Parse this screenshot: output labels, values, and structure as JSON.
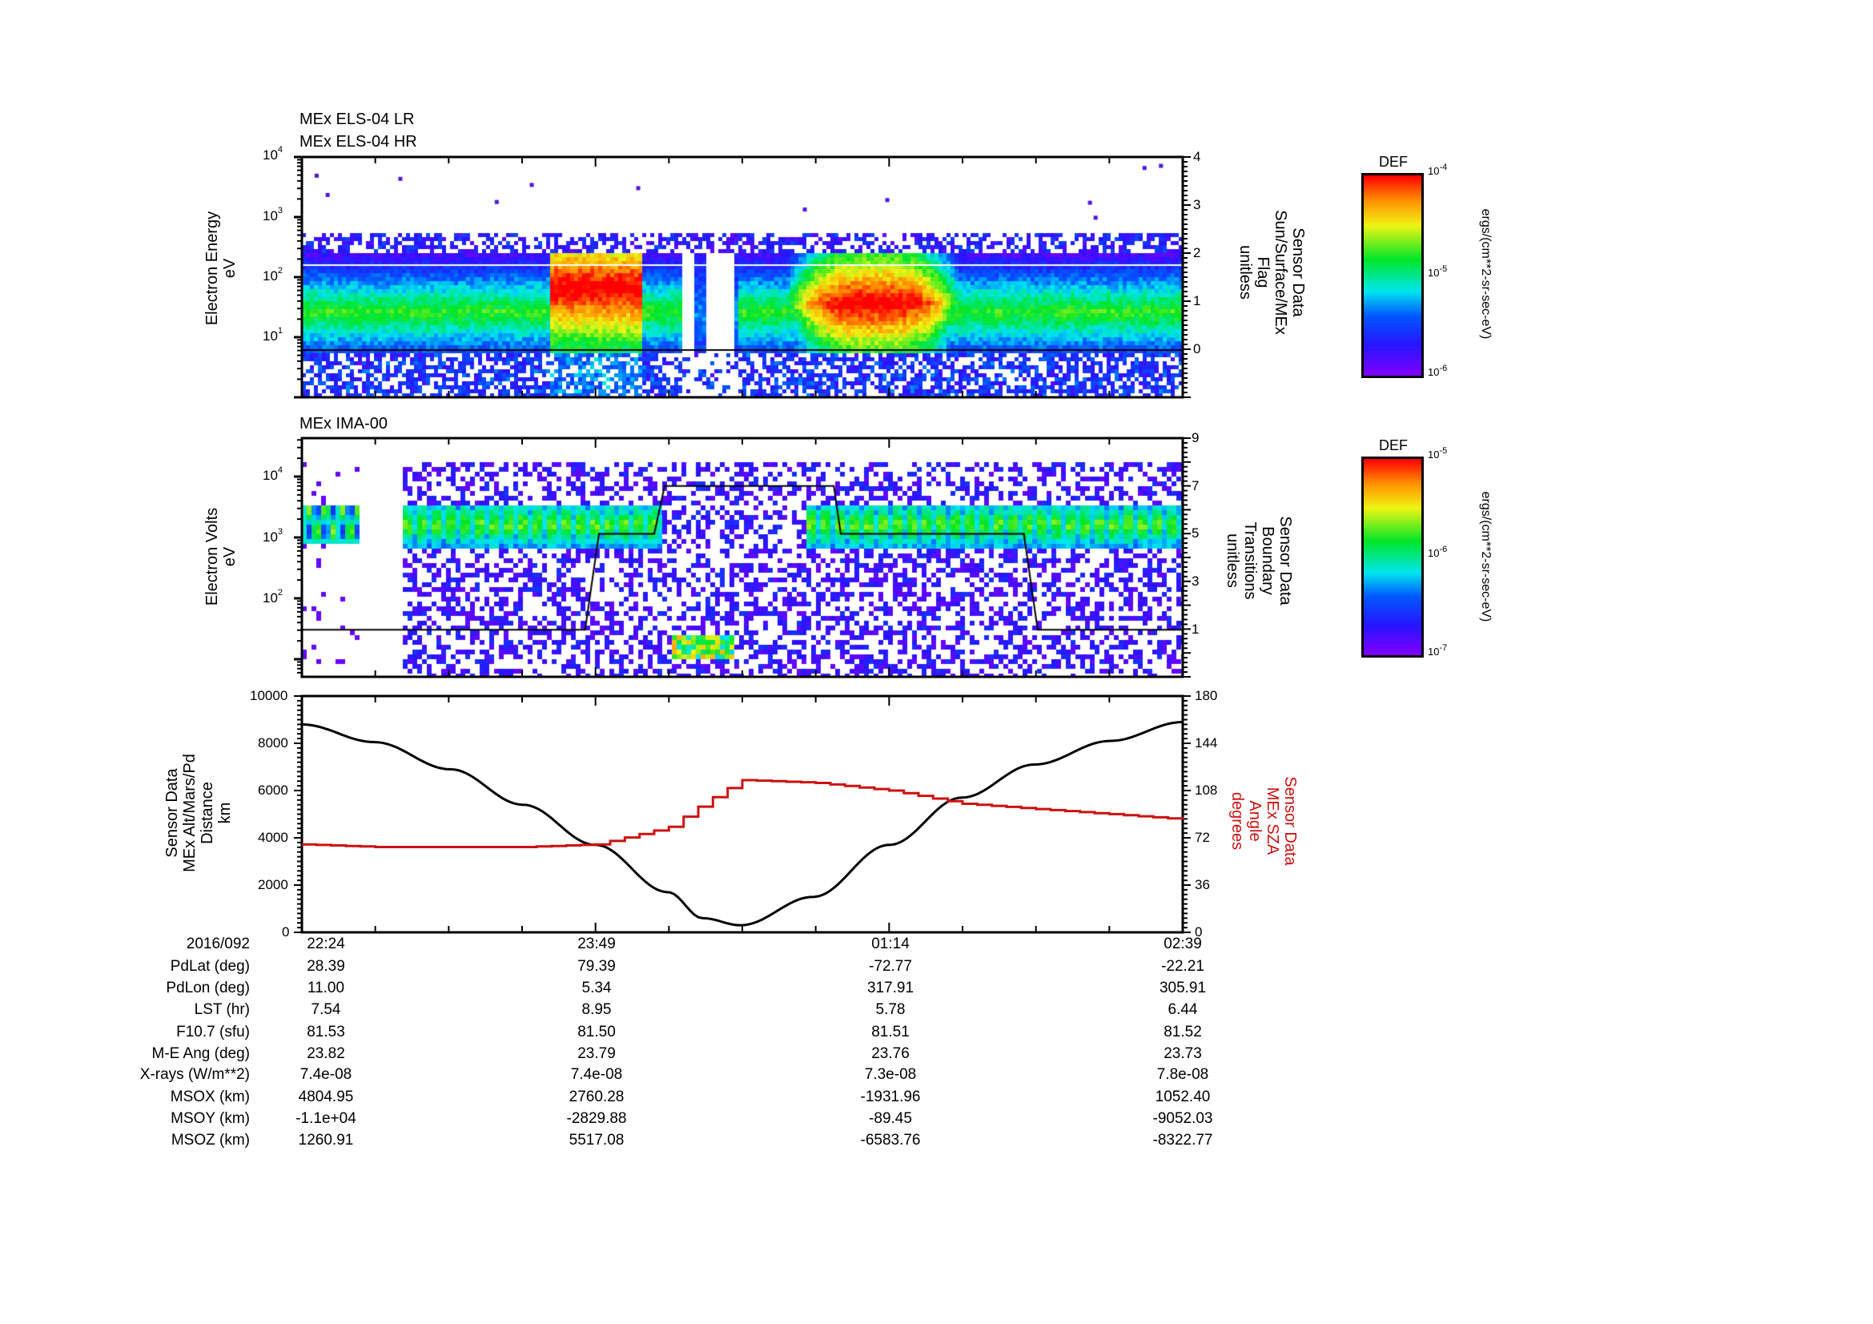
{
  "chart_data": [
    {
      "type": "heatmap",
      "panel": "ELS electron spectrogram",
      "titles": [
        "MEx ELS-04 LR",
        "MEx ELS-04 HR"
      ],
      "ylabel": [
        "Electron Energy",
        "eV"
      ],
      "yscale": "log",
      "ylim": [
        1.7,
        10000
      ],
      "yticks": [
        {
          "base": "10",
          "exp": "1",
          "value": 10
        },
        {
          "base": "10",
          "exp": "2",
          "value": 100
        },
        {
          "base": "10",
          "exp": "3",
          "value": 1000
        },
        {
          "base": "10",
          "exp": "4",
          "value": 10000
        }
      ],
      "right_axis": {
        "label": [
          "Sensor Data",
          "Sun/Surface/MEx",
          "Flag",
          "unitless"
        ],
        "ylim": [
          -1,
          4
        ],
        "yticks": [
          0,
          1,
          2,
          3,
          4
        ],
        "line_values": [
          {
            "y": 0,
            "color": "#000000"
          },
          {
            "y": 1.77,
            "color": "#ffffff"
          }
        ]
      },
      "colorbar": {
        "title": "DEF",
        "unit": "ergs/(cm**2-sr-sec-eV)",
        "ticks": [
          {
            "base": "10",
            "exp": "-4"
          },
          {
            "base": "10",
            "exp": "-5"
          },
          {
            "base": "10",
            "exp": "-6"
          }
        ],
        "range": [
          1e-06,
          0.0001
        ]
      },
      "features": [
        {
          "label": "background band",
          "t_start": "22:24",
          "t_end": "02:39",
          "energy_center_eV": 30,
          "level": 0.55
        },
        {
          "label": "intense band 1",
          "t_start": "23:35",
          "t_end": "00:02",
          "energy_range_eV": [
            40,
            200
          ],
          "level": 1.0
        },
        {
          "label": "data gap / eclipse",
          "t_start": "00:14",
          "t_end": "00:30",
          "level": 0.15
        },
        {
          "label": "intense band 2",
          "t_start": "00:45",
          "t_end": "01:33",
          "energy_range_eV": [
            25,
            150
          ],
          "level": 0.95
        }
      ]
    },
    {
      "type": "heatmap",
      "panel": "IMA ion spectrogram",
      "titles": [
        "MEx IMA-00"
      ],
      "ylabel": [
        "Electron Volts",
        "eV"
      ],
      "yscale": "log",
      "ylim": [
        10,
        40000
      ],
      "yticks": [
        {
          "base": "10",
          "exp": "2",
          "value": 100
        },
        {
          "base": "10",
          "exp": "3",
          "value": 1000
        },
        {
          "base": "10",
          "exp": "4",
          "value": 10000
        }
      ],
      "right_axis": {
        "label": [
          "Sensor Data",
          "Boundary",
          "Transitions",
          "unitless"
        ],
        "ylim": [
          -1,
          9
        ],
        "yticks": [
          1,
          3,
          5,
          7,
          9
        ],
        "boundary_trace": [
          {
            "t": "22:24",
            "v": 1
          },
          {
            "t": "23:46",
            "v": 1
          },
          {
            "t": "23:50",
            "v": 5
          },
          {
            "t": "00:06",
            "v": 5
          },
          {
            "t": "00:09",
            "v": 7
          },
          {
            "t": "00:58",
            "v": 7
          },
          {
            "t": "01:00",
            "v": 5
          },
          {
            "t": "01:53",
            "v": 5
          },
          {
            "t": "01:57",
            "v": 1
          },
          {
            "t": "02:39",
            "v": 1
          }
        ]
      },
      "colorbar": {
        "title": "DEF",
        "unit": "ergs/(cm**2-sr-sec-eV)",
        "ticks": [
          {
            "base": "10",
            "exp": "-5"
          },
          {
            "base": "10",
            "exp": "-6"
          },
          {
            "base": "10",
            "exp": "-7"
          }
        ],
        "range": [
          1e-07,
          1e-05
        ]
      },
      "features": [
        {
          "label": "solar wind beam",
          "t_start": "22:24",
          "t_end": "22:40",
          "energy_range_eV": [
            900,
            4000
          ]
        },
        {
          "label": "data gap",
          "t_start": "22:40",
          "t_end": "22:53"
        },
        {
          "label": "magnetosheath beam",
          "t_start": "22:53",
          "t_end": "00:07",
          "energy_range_eV": [
            700,
            4000
          ]
        },
        {
          "label": "low-energy ionospheric ions",
          "t_start": "00:10",
          "t_end": "00:28",
          "energy_range_eV": [
            14,
            22
          ]
        },
        {
          "label": "magnetosheath beam",
          "t_start": "00:50",
          "t_end": "02:39",
          "energy_range_eV": [
            700,
            4000
          ]
        }
      ]
    },
    {
      "type": "line",
      "panel": "Altitude and SZA",
      "x": [
        "22:24",
        "22:45",
        "23:07",
        "23:28",
        "23:49",
        "00:10",
        "00:20",
        "00:31",
        "00:52",
        "01:14",
        "01:35",
        "01:56",
        "02:18",
        "02:39"
      ],
      "ylabel": [
        "Sensor Data",
        "MEx Alt/Mars/Pd",
        "Distance",
        "km"
      ],
      "ylim": [
        0,
        10000
      ],
      "yticks": [
        0,
        2000,
        4000,
        6000,
        8000,
        10000
      ],
      "y2label": [
        "Sensor Data",
        "MEx SZA",
        "Angle",
        "degrees"
      ],
      "y2lim": [
        0,
        180
      ],
      "y2ticks": [
        0,
        36,
        72,
        108,
        144,
        180
      ],
      "series": [
        {
          "name": "MEx Alt/Mars/Pd Distance (km)",
          "axis": "left",
          "color": "#000000",
          "values": [
            8800,
            8050,
            6900,
            5400,
            3700,
            1700,
            600,
            300,
            1500,
            3700,
            5700,
            7100,
            8100,
            8900
          ]
        },
        {
          "name": "MEx SZA Angle (deg)",
          "axis": "right",
          "color": "#cc1111",
          "values": [
            67,
            65,
            65,
            65,
            67,
            80,
            98,
            116,
            114,
            108,
            98,
            94,
            90,
            86
          ]
        }
      ]
    }
  ],
  "ephemeris": {
    "date": "2016/092",
    "times": [
      "22:24",
      "23:49",
      "01:14",
      "02:39"
    ],
    "rows": [
      {
        "label": "PdLat (deg)",
        "values": [
          "28.39",
          "79.39",
          "-72.77",
          "-22.21"
        ]
      },
      {
        "label": "PdLon (deg)",
        "values": [
          "11.00",
          "5.34",
          "317.91",
          "305.91"
        ]
      },
      {
        "label": "LST (hr)",
        "values": [
          "7.54",
          "8.95",
          "5.78",
          "6.44"
        ]
      },
      {
        "label": "F10.7 (sfu)",
        "values": [
          "81.53",
          "81.50",
          "81.51",
          "81.52"
        ]
      },
      {
        "label": "M-E Ang (deg)",
        "values": [
          "23.82",
          "23.79",
          "23.76",
          "23.73"
        ]
      },
      {
        "label": "X-rays (W/m**2)",
        "values": [
          "7.4e-08",
          "7.4e-08",
          "7.3e-08",
          "7.8e-08"
        ]
      },
      {
        "label": "MSOX (km)",
        "values": [
          "4804.95",
          "2760.28",
          "-1931.96",
          "1052.40"
        ]
      },
      {
        "label": "MSOY (km)",
        "values": [
          "-1.1e+04",
          "-2829.88",
          "-89.45",
          "-9052.03"
        ]
      },
      {
        "label": "MSOZ (km)",
        "values": [
          "1260.91",
          "5517.08",
          "-6583.76",
          "-8322.77"
        ]
      }
    ]
  },
  "colors": {
    "altitude_line": "#000000",
    "sza_line": "#cc1111",
    "axis": "#000000"
  }
}
